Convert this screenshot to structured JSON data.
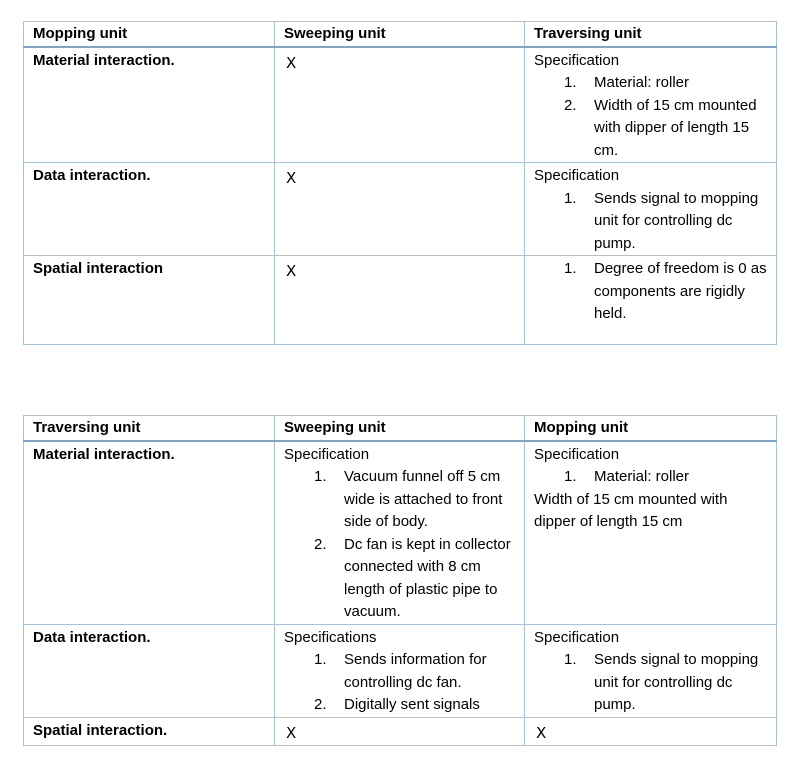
{
  "table1": {
    "headers": [
      "Mopping unit",
      "Sweeping unit",
      "Traversing unit"
    ],
    "rows": [
      {
        "label": "Material interaction.",
        "sweeping": "X",
        "traversing": {
          "heading": "Specification",
          "items": [
            {
              "num": "1.",
              "text": "Material: roller"
            },
            {
              "num": "2.",
              "text": "Width of 15 cm mounted with dipper of length 15 cm."
            }
          ]
        }
      },
      {
        "label": "Data interaction.",
        "sweeping": "X",
        "traversing": {
          "heading": "Specification",
          "items": [
            {
              "num": "1.",
              "text": "Sends signal to mopping unit for controlling dc pump."
            }
          ]
        }
      },
      {
        "label": "Spatial interaction",
        "sweeping": "X",
        "traversing": {
          "heading": "",
          "items": [
            {
              "num": "1.",
              "text": "Degree of freedom is 0 as components are rigidly held."
            }
          ]
        }
      }
    ]
  },
  "table2": {
    "headers": [
      "Traversing unit",
      "Sweeping unit",
      "Mopping unit"
    ],
    "rows": [
      {
        "label": "Material interaction.",
        "sweeping": {
          "heading": "Specification",
          "items": [
            {
              "num": "1.",
              "text": "Vacuum funnel off 5 cm wide is attached to front side of body."
            },
            {
              "num": "2.",
              "text": "Dc fan is kept in collector connected with 8 cm length of plastic pipe to vacuum."
            }
          ]
        },
        "mopping": {
          "heading": "Specification",
          "items": [
            {
              "num": "1.",
              "text": "Material: roller"
            }
          ],
          "extra": "Width of 15 cm mounted with dipper of length 15 cm"
        }
      },
      {
        "label": "Data interaction.",
        "sweeping": {
          "heading": "Specifications",
          "items": [
            {
              "num": "1.",
              "text": "Sends information for controlling dc fan."
            },
            {
              "num": "2.",
              "text": "Digitally sent signals"
            }
          ]
        },
        "mopping": {
          "heading": "Specification",
          "items": [
            {
              "num": "1.",
              "text": "Sends signal to mopping unit for controlling dc pump."
            }
          ]
        }
      },
      {
        "label": "Spatial interaction.",
        "sweeping": "X",
        "mopping": "X"
      }
    ]
  }
}
